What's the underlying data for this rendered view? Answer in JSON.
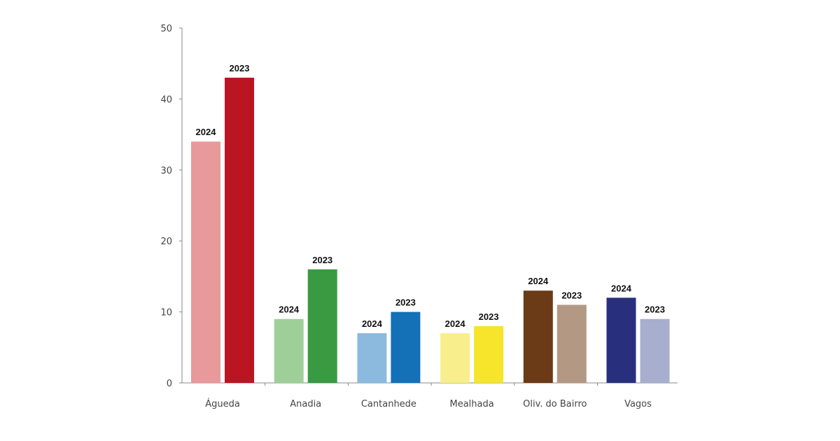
{
  "chart_data": {
    "type": "bar",
    "categories": [
      "Águeda",
      "Anadia",
      "Cantanhede",
      "Mealhada",
      "Oliv. do Bairro",
      "Vagos"
    ],
    "series": [
      {
        "label": "2024",
        "values": [
          34,
          9,
          7,
          7,
          13,
          12
        ],
        "colors": [
          "#e8999b",
          "#9fcf98",
          "#8bbade",
          "#f8ef8c",
          "#6b3a17",
          "#28307e"
        ]
      },
      {
        "label": "2023",
        "values": [
          43,
          16,
          10,
          8,
          11,
          9
        ],
        "colors": [
          "#bc1522",
          "#3a9a42",
          "#1470b7",
          "#f6e52a",
          "#b39883",
          "#a8aecd"
        ]
      }
    ],
    "ylim": [
      0,
      50
    ],
    "yticks": [
      "0",
      "10",
      "20",
      "30",
      "40",
      "50"
    ],
    "grid": false,
    "legend": "none"
  }
}
